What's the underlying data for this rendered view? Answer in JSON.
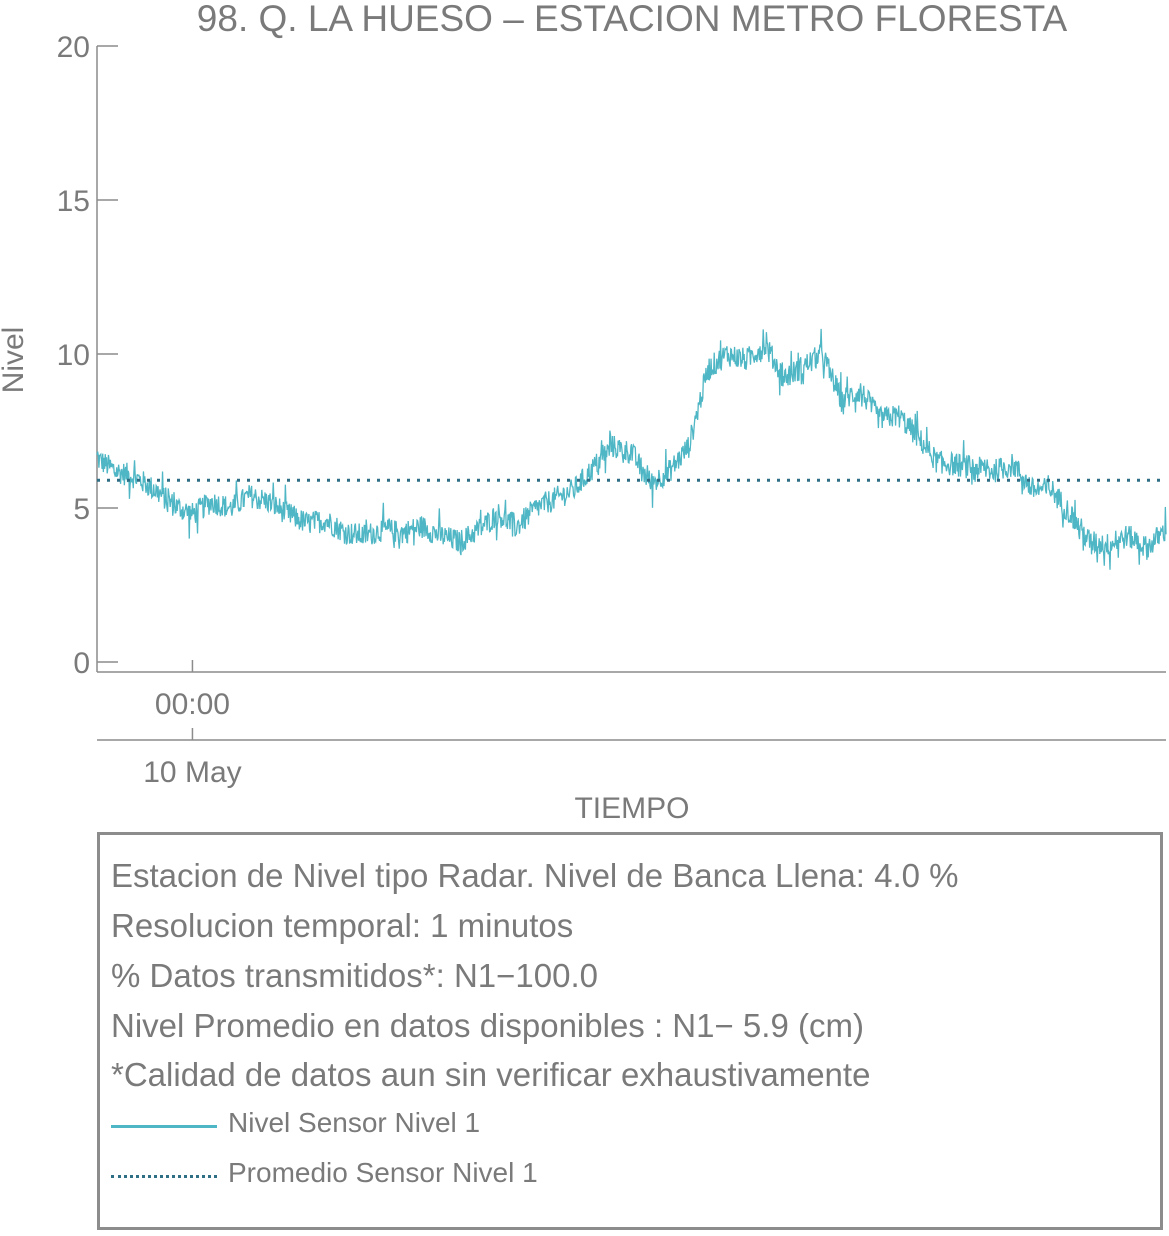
{
  "chart_data": {
    "type": "line",
    "title": "98. Q. LA HUESO – ESTACION METRO FLORESTA",
    "xlabel": "TIEMPO",
    "ylabel": "Nivel",
    "ylim": [
      0,
      20
    ],
    "yticks": [
      "0",
      "5",
      "10",
      "15",
      "20"
    ],
    "xticks": [
      {
        "time_label": "00:00",
        "date_label": "10 May"
      }
    ],
    "grid": false,
    "x_range_hours": [
      -2.5,
      25.5
    ],
    "x_start_label": "00:00 10 May",
    "series": [
      {
        "name": "Nivel Sensor Nivel 1",
        "style": "solid",
        "color": "#4eb6c4",
        "x_hours": [
          -2.5,
          -2.0,
          -1.5,
          -1.0,
          -0.5,
          0.0,
          0.5,
          1.0,
          1.5,
          2.0,
          2.5,
          3.0,
          3.5,
          4.0,
          4.5,
          5.0,
          5.5,
          6.0,
          6.5,
          7.0,
          7.5,
          8.0,
          8.5,
          9.0,
          9.5,
          10.0,
          10.5,
          11.0,
          11.5,
          12.0,
          12.5,
          13.0,
          13.5,
          14.0,
          14.5,
          15.0,
          15.5,
          16.0,
          16.5,
          17.0,
          17.5,
          18.0,
          18.5,
          19.0,
          19.5,
          20.0,
          20.5,
          21.0,
          21.5,
          22.0,
          22.5,
          23.0,
          23.5,
          24.0,
          24.5,
          25.0,
          25.5
        ],
        "values": [
          6.6,
          6.2,
          6.0,
          5.6,
          5.1,
          4.8,
          5.2,
          5.0,
          5.4,
          5.2,
          4.8,
          4.5,
          4.6,
          4.2,
          4.1,
          4.3,
          4.2,
          4.4,
          4.1,
          3.9,
          4.3,
          4.8,
          4.4,
          5.0,
          5.3,
          5.6,
          6.3,
          7.0,
          6.8,
          5.8,
          6.2,
          7.0,
          9.5,
          10.0,
          9.8,
          10.3,
          9.2,
          9.6,
          10.0,
          8.5,
          8.8,
          7.9,
          8.0,
          7.3,
          6.5,
          6.4,
          6.3,
          6.2,
          6.4,
          5.6,
          5.6,
          4.8,
          3.9,
          3.8,
          4.1,
          3.7,
          4.3
        ],
        "noise_amplitude": 0.7
      },
      {
        "name": "Promedio Sensor Nivel 1",
        "style": "dotted",
        "color": "#2e6f86",
        "value": 5.9
      }
    ]
  },
  "info": {
    "line1": "Estacion de Nivel tipo Radar. Nivel de Banca Llena:  4.0 %",
    "line2": "Resolucion temporal: 1 minutos",
    "line3": "% Datos transmitidos*: N1−100.0",
    "line4": "Nivel Promedio en datos disponibles : N1−  5.9 (cm)",
    "line5": "*Calidad de datos aun sin verificar exhaustivamente"
  },
  "legend": {
    "solid_label": "Nivel Sensor Nivel 1",
    "dotted_label": "Promedio Sensor Nivel 1",
    "solid_color": "#4eb6c4",
    "dotted_color": "#2e6f86"
  }
}
